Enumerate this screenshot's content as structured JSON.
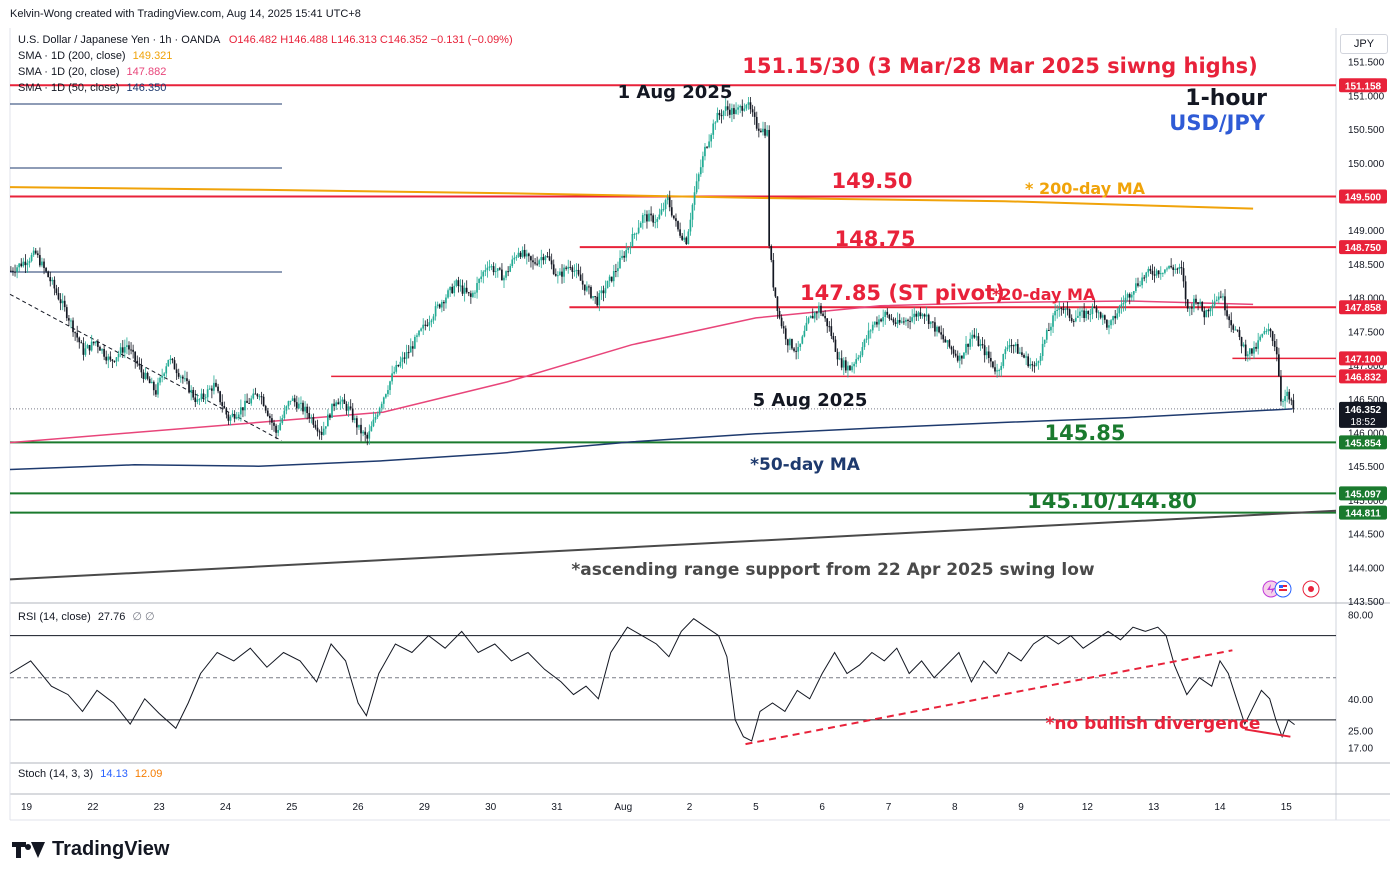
{
  "header": {
    "credit": "Kelvin-Wong created with TradingView.com, Aug 14, 2025 15:41 UTC+8",
    "symbol": "U.S. Dollar / Japanese Yen · 1h · OANDA",
    "ohlc": "O146.482 H146.488 L146.313 C146.352 −0.131 (−0.09%)",
    "sma200_label": "SMA · 1D (200, close)",
    "sma200_value": "149.321",
    "sma20_label": "SMA · 1D (20, close)",
    "sma20_value": "147.882",
    "sma50_label": "SMA · 1D (50, close)",
    "sma50_value": "146.350",
    "currency": "JPY"
  },
  "colors": {
    "bull": "#22ab94",
    "bear": "#131722",
    "resistance": "#e8223a",
    "support": "#1a7a2e",
    "sma200": "#f0a30a",
    "sma20": "#e8457a",
    "sma50": "#1e3a6e",
    "range_support": "#4a4a4a",
    "annotation_red": "#e8223a",
    "blue": "#2f5bd6",
    "dashed": "#131722"
  },
  "chart_data": {
    "type": "candlestick",
    "instrument": "USD/JPY",
    "timeframe": "1-hour",
    "ylim": [
      143.5,
      152.0
    ],
    "x_ticks": [
      "19",
      "22",
      "23",
      "24",
      "25",
      "26",
      "29",
      "30",
      "31",
      "Aug",
      "2",
      "5",
      "6",
      "7",
      "8",
      "9",
      "12",
      "13",
      "14",
      "15"
    ],
    "y_ticks": [
      "151.500",
      "151.000",
      "150.500",
      "150.000",
      "149.500",
      "149.000",
      "148.500",
      "148.000",
      "147.500",
      "147.000",
      "146.500",
      "146.000",
      "145.500",
      "145.000",
      "144.500",
      "144.000",
      "143.500"
    ],
    "price_path": [
      [
        0,
        148.4
      ],
      [
        12,
        148.65
      ],
      [
        20,
        148.2
      ],
      [
        28,
        147.7
      ],
      [
        35,
        147.2
      ],
      [
        41,
        147.35
      ],
      [
        48,
        147.05
      ],
      [
        56,
        147.3
      ],
      [
        63,
        146.9
      ],
      [
        70,
        146.6
      ],
      [
        76,
        147.1
      ],
      [
        82,
        146.85
      ],
      [
        90,
        146.45
      ],
      [
        98,
        146.7
      ],
      [
        105,
        146.2
      ],
      [
        113,
        146.4
      ],
      [
        120,
        146.6
      ],
      [
        128,
        146.0
      ],
      [
        135,
        146.5
      ],
      [
        143,
        146.3
      ],
      [
        150,
        146.0
      ],
      [
        157,
        146.5
      ],
      [
        163,
        146.35
      ],
      [
        168,
        146.05
      ],
      [
        172,
        145.9
      ],
      [
        178,
        146.4
      ],
      [
        185,
        146.9
      ],
      [
        192,
        147.2
      ],
      [
        200,
        147.6
      ],
      [
        208,
        147.95
      ],
      [
        215,
        148.2
      ],
      [
        222,
        148.0
      ],
      [
        230,
        148.5
      ],
      [
        238,
        148.3
      ],
      [
        245,
        148.7
      ],
      [
        252,
        148.5
      ],
      [
        258,
        148.65
      ],
      [
        264,
        148.3
      ],
      [
        270,
        148.5
      ],
      [
        276,
        148.2
      ],
      [
        283,
        147.95
      ],
      [
        290,
        148.3
      ],
      [
        297,
        148.7
      ],
      [
        305,
        149.2
      ],
      [
        312,
        149.15
      ],
      [
        317,
        149.45
      ],
      [
        322,
        149.0
      ],
      [
        326,
        148.85
      ],
      [
        330,
        149.55
      ],
      [
        335,
        150.2
      ],
      [
        340,
        150.65
      ],
      [
        345,
        150.8
      ],
      [
        350,
        150.75
      ],
      [
        355,
        150.9
      ],
      [
        360,
        150.55
      ],
      [
        365,
        150.45
      ],
      [
        366,
        148.8
      ],
      [
        368,
        148.2
      ],
      [
        371,
        147.7
      ],
      [
        375,
        147.35
      ],
      [
        380,
        147.2
      ],
      [
        385,
        147.65
      ],
      [
        390,
        147.85
      ],
      [
        395,
        147.55
      ],
      [
        400,
        147.05
      ],
      [
        405,
        146.95
      ],
      [
        410,
        147.2
      ],
      [
        416,
        147.6
      ],
      [
        422,
        147.75
      ],
      [
        428,
        147.6
      ],
      [
        434,
        147.7
      ],
      [
        440,
        147.8
      ],
      [
        446,
        147.55
      ],
      [
        452,
        147.3
      ],
      [
        458,
        147.1
      ],
      [
        464,
        147.45
      ],
      [
        470,
        147.2
      ],
      [
        476,
        146.9
      ],
      [
        482,
        147.35
      ],
      [
        488,
        147.15
      ],
      [
        494,
        146.95
      ],
      [
        500,
        147.45
      ],
      [
        506,
        147.9
      ],
      [
        512,
        147.7
      ],
      [
        518,
        147.75
      ],
      [
        524,
        147.85
      ],
      [
        530,
        147.55
      ],
      [
        536,
        147.9
      ],
      [
        542,
        148.15
      ],
      [
        548,
        148.35
      ],
      [
        554,
        148.4
      ],
      [
        560,
        148.45
      ],
      [
        565,
        148.4
      ],
      [
        568,
        147.8
      ],
      [
        572,
        148.0
      ],
      [
        576,
        147.75
      ],
      [
        580,
        147.95
      ],
      [
        584,
        148.05
      ],
      [
        588,
        147.7
      ],
      [
        592,
        147.45
      ],
      [
        596,
        147.2
      ],
      [
        600,
        147.2
      ],
      [
        604,
        147.45
      ],
      [
        608,
        147.5
      ],
      [
        611,
        147.2
      ],
      [
        613,
        146.5
      ],
      [
        616,
        146.55
      ],
      [
        619,
        146.35
      ]
    ],
    "sma200_path": [
      [
        0,
        149.64
      ],
      [
        120,
        149.6
      ],
      [
        240,
        149.55
      ],
      [
        360,
        149.48
      ],
      [
        480,
        149.43
      ],
      [
        600,
        149.321
      ]
    ],
    "sma20_path": [
      [
        0,
        145.85
      ],
      [
        60,
        146.0
      ],
      [
        120,
        146.15
      ],
      [
        180,
        146.3
      ],
      [
        240,
        146.75
      ],
      [
        300,
        147.3
      ],
      [
        360,
        147.7
      ],
      [
        420,
        147.88
      ],
      [
        480,
        147.93
      ],
      [
        540,
        147.95
      ],
      [
        600,
        147.9
      ]
    ],
    "sma50_path": [
      [
        0,
        145.45
      ],
      [
        60,
        145.52
      ],
      [
        120,
        145.5
      ],
      [
        180,
        145.58
      ],
      [
        240,
        145.7
      ],
      [
        300,
        145.86
      ],
      [
        360,
        145.98
      ],
      [
        420,
        146.07
      ],
      [
        480,
        146.15
      ],
      [
        540,
        146.22
      ],
      [
        619,
        146.35
      ]
    ],
    "range_support_path": [
      [
        0,
        143.82
      ],
      [
        640,
        144.84
      ]
    ],
    "rsi": {
      "label": "RSI (14, close)",
      "value": "27.76",
      "markers": "∅ ∅",
      "ylim": [
        10,
        85
      ],
      "y_ticks": [
        "80.00",
        "40.00",
        "25.00",
        "17.00"
      ],
      "overbought": 70,
      "oversold": 30,
      "mid": 50,
      "path": [
        [
          0,
          52
        ],
        [
          10,
          58
        ],
        [
          20,
          46
        ],
        [
          28,
          42
        ],
        [
          35,
          34
        ],
        [
          42,
          44
        ],
        [
          50,
          38
        ],
        [
          58,
          28
        ],
        [
          65,
          40
        ],
        [
          72,
          33
        ],
        [
          80,
          26
        ],
        [
          86,
          38
        ],
        [
          92,
          52
        ],
        [
          100,
          62
        ],
        [
          108,
          58
        ],
        [
          116,
          64
        ],
        [
          124,
          55
        ],
        [
          132,
          62
        ],
        [
          140,
          58
        ],
        [
          148,
          48
        ],
        [
          155,
          66
        ],
        [
          162,
          58
        ],
        [
          168,
          38
        ],
        [
          172,
          32
        ],
        [
          178,
          52
        ],
        [
          186,
          66
        ],
        [
          194,
          62
        ],
        [
          202,
          70
        ],
        [
          210,
          64
        ],
        [
          218,
          72
        ],
        [
          226,
          62
        ],
        [
          234,
          66
        ],
        [
          242,
          58
        ],
        [
          250,
          62
        ],
        [
          258,
          54
        ],
        [
          266,
          48
        ],
        [
          272,
          42
        ],
        [
          278,
          46
        ],
        [
          284,
          40
        ],
        [
          290,
          62
        ],
        [
          298,
          74
        ],
        [
          305,
          70
        ],
        [
          312,
          66
        ],
        [
          318,
          60
        ],
        [
          324,
          72
        ],
        [
          330,
          78
        ],
        [
          336,
          74
        ],
        [
          342,
          70
        ],
        [
          346,
          60
        ],
        [
          350,
          30
        ],
        [
          354,
          22
        ],
        [
          358,
          20
        ],
        [
          362,
          34
        ],
        [
          368,
          38
        ],
        [
          374,
          34
        ],
        [
          380,
          44
        ],
        [
          386,
          40
        ],
        [
          392,
          52
        ],
        [
          398,
          62
        ],
        [
          404,
          52
        ],
        [
          410,
          56
        ],
        [
          416,
          62
        ],
        [
          422,
          58
        ],
        [
          428,
          64
        ],
        [
          434,
          52
        ],
        [
          440,
          58
        ],
        [
          446,
          50
        ],
        [
          452,
          56
        ],
        [
          458,
          62
        ],
        [
          464,
          48
        ],
        [
          470,
          58
        ],
        [
          476,
          52
        ],
        [
          482,
          62
        ],
        [
          488,
          58
        ],
        [
          494,
          66
        ],
        [
          500,
          70
        ],
        [
          506,
          66
        ],
        [
          512,
          70
        ],
        [
          518,
          64
        ],
        [
          524,
          68
        ],
        [
          530,
          72
        ],
        [
          536,
          68
        ],
        [
          542,
          74
        ],
        [
          548,
          72
        ],
        [
          554,
          74
        ],
        [
          558,
          70
        ],
        [
          562,
          56
        ],
        [
          568,
          42
        ],
        [
          574,
          50
        ],
        [
          580,
          46
        ],
        [
          584,
          58
        ],
        [
          588,
          52
        ],
        [
          592,
          40
        ],
        [
          596,
          28
        ],
        [
          600,
          36
        ],
        [
          604,
          44
        ],
        [
          608,
          40
        ],
        [
          611,
          30
        ],
        [
          614,
          22
        ],
        [
          617,
          30
        ],
        [
          620,
          27.76
        ]
      ],
      "trendline": [
        [
          355,
          18.5
        ],
        [
          590,
          63
        ]
      ],
      "divergence_line": [
        [
          596,
          25.5
        ],
        [
          618,
          22
        ]
      ]
    },
    "stoch": {
      "label": "Stoch (14, 3, 3)",
      "k": "14.13",
      "d": "12.09"
    }
  },
  "levels": {
    "r1": {
      "text": "151.15/30 (3 Mar/28 Mar 2025 siwng highs)",
      "price": 151.15,
      "tag": "151.158"
    },
    "r2": {
      "text": "149.50",
      "price": 149.5,
      "tag": "149.500"
    },
    "r3": {
      "text": "148.75",
      "price": 148.75,
      "tag": "148.750"
    },
    "r4": {
      "text": "147.85 (ST pivot)",
      "price": 147.858,
      "tag": "147.858"
    },
    "r5": {
      "price": 147.1,
      "tag": "147.100"
    },
    "r6": {
      "price": 146.832,
      "tag": "146.832"
    },
    "s1": {
      "text": "145.85",
      "price": 145.854,
      "tag": "145.854"
    },
    "s2": {
      "price": 145.097,
      "tag": "145.097"
    },
    "s3": {
      "text": "145.10/144.80",
      "price": 144.811,
      "tag": "144.811"
    },
    "last": {
      "tag": "146.352",
      "countdown": "18:52"
    }
  },
  "annotations": {
    "high_label": "1 Aug 2025",
    "low_label": "5 Aug 2025",
    "timeframe": "1-hour",
    "pair": "USD/JPY",
    "sma200_text": "* 200-day MA",
    "sma20_text": "*20-day MA",
    "sma50_text": "*50-day MA",
    "range_text": "*ascending range support from 22 Apr 2025 swing low",
    "rsi_text": "*no bullish divergence"
  },
  "footer": {
    "brand": "TradingView"
  }
}
